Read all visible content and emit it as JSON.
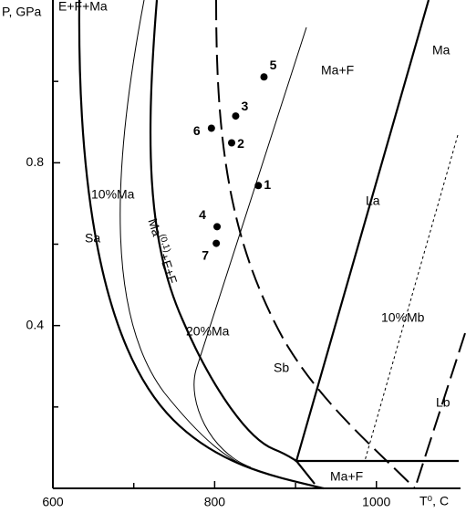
{
  "chart_data": {
    "type": "scatter",
    "xlabel": "T⁰, C",
    "ylabel": "P, GPa",
    "xlim": [
      600,
      1104
    ],
    "ylim": [
      0,
      1.2
    ],
    "xticks": [
      600,
      800,
      1000
    ],
    "yticks": [
      0.4,
      0.8
    ],
    "xminorticks": [
      700,
      900
    ],
    "yminorticks": [
      0.2,
      0.6,
      1.0
    ],
    "color": "#000000",
    "x": [
      861,
      826,
      796,
      821,
      854,
      803,
      802
    ],
    "values": [
      1.011,
      0.915,
      0.885,
      0.849,
      0.744,
      0.643,
      0.602
    ],
    "labels": [
      "5",
      "3",
      "6",
      "2",
      "1",
      "4",
      "7"
    ],
    "annotations": [
      "E+F+Ma",
      "Ma+F",
      "Ma",
      "10%Ma",
      "Sa",
      "La",
      "20%Ma",
      "10%Mb",
      "Sb",
      "Lb",
      "Ma+F"
    ],
    "rotated_annotation": {
      "text": "Ma",
      "sup": "(0,1)",
      "rest": "+E+F"
    }
  }
}
